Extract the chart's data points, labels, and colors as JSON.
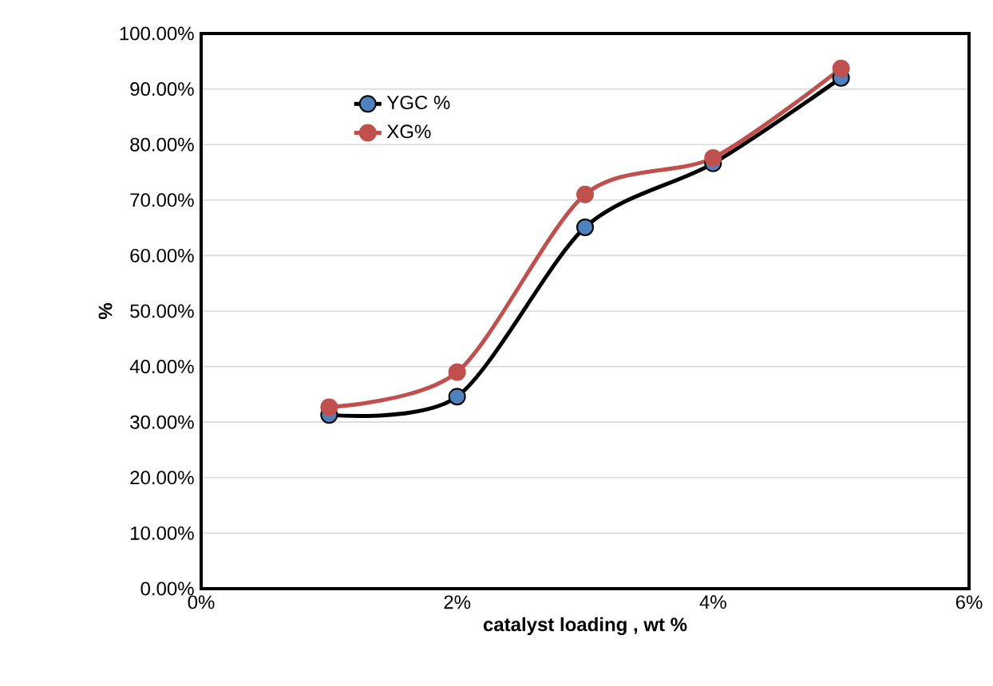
{
  "chart_data": {
    "type": "line",
    "xlabel": "catalyst loading  , wt %",
    "ylabel": "%",
    "x": [
      1,
      2,
      3,
      4,
      5
    ],
    "series": [
      {
        "name": "YGC %",
        "color": "#000000",
        "colors": [
          "#4f81bd",
          "#4f81bd",
          "#4f81bd",
          "#4f81bd",
          "#4f81bd"
        ],
        "values": [
          31.3,
          34.6,
          65.1,
          76.6,
          92.0
        ]
      },
      {
        "name": "XG%",
        "color": "#c0504d",
        "colors": [
          "#c0504d",
          "#c0504d",
          "#c0504d",
          "#c0504d",
          "#c0504d"
        ],
        "values": [
          32.7,
          39.0,
          71.0,
          77.6,
          93.7
        ]
      }
    ],
    "xlim": [
      0,
      6
    ],
    "xticks": [
      {
        "value": 0,
        "label": "0%"
      },
      {
        "value": 2,
        "label": "2%"
      },
      {
        "value": 4,
        "label": "4%"
      },
      {
        "value": 6,
        "label": "6%"
      }
    ],
    "ylim": [
      0,
      100
    ],
    "yticks": [
      {
        "value": 0,
        "label": "0.00%"
      },
      {
        "value": 10,
        "label": "10.00%"
      },
      {
        "value": 20,
        "label": "20.00%"
      },
      {
        "value": 30,
        "label": "30.00%"
      },
      {
        "value": 40,
        "label": "40.00%"
      },
      {
        "value": 50,
        "label": "50.00%"
      },
      {
        "value": 60,
        "label": "60.00%"
      },
      {
        "value": 70,
        "label": "70.00%"
      },
      {
        "value": 80,
        "label": "80.00%"
      },
      {
        "value": 90,
        "label": "90.00%"
      },
      {
        "value": 100,
        "label": "100.00%"
      }
    ],
    "grid": "y",
    "legend": "top left",
    "marker": "circle",
    "line_style": "solid"
  }
}
